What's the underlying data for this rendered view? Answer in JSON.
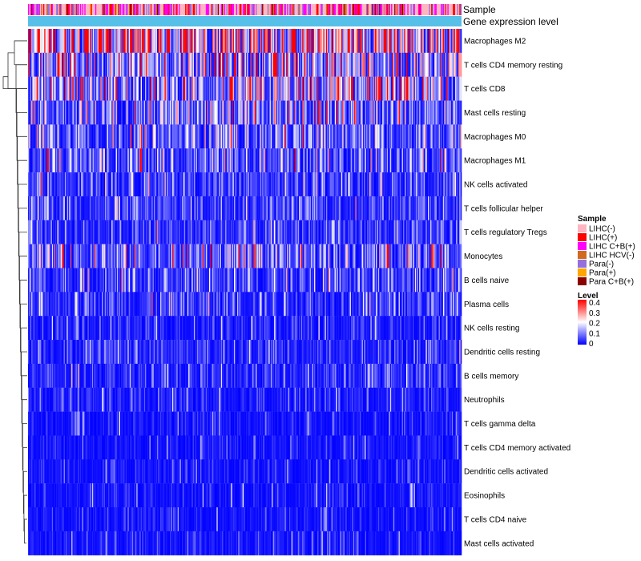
{
  "chart_data": {
    "type": "heatmap",
    "title": "",
    "annotations": [
      {
        "name": "Sample"
      },
      {
        "name": "Gene expression level"
      }
    ],
    "rows": [
      {
        "label": "Macrophages M2",
        "mean_level": 0.33
      },
      {
        "label": "T cells CD4 memory resting",
        "mean_level": 0.17
      },
      {
        "label": "T cells CD8",
        "mean_level": 0.15
      },
      {
        "label": "Mast cells resting",
        "mean_level": 0.11
      },
      {
        "label": "Macrophages M0",
        "mean_level": 0.09
      },
      {
        "label": "Macrophages M1",
        "mean_level": 0.08
      },
      {
        "label": "NK cells activated",
        "mean_level": 0.06
      },
      {
        "label": "T cells follicular helper",
        "mean_level": 0.06
      },
      {
        "label": "T cells regulatory  Tregs",
        "mean_level": 0.05
      },
      {
        "label": "Monocytes",
        "mean_level": 0.1
      },
      {
        "label": "B cells naive",
        "mean_level": 0.06
      },
      {
        "label": "Plasma cells",
        "mean_level": 0.06
      },
      {
        "label": "NK cells resting",
        "mean_level": 0.03
      },
      {
        "label": "Dendritic cells resting",
        "mean_level": 0.04
      },
      {
        "label": "B cells memory",
        "mean_level": 0.04
      },
      {
        "label": "Neutrophils",
        "mean_level": 0.03
      },
      {
        "label": "T cells gamma delta",
        "mean_level": 0.02
      },
      {
        "label": "T cells CD4 memory activated",
        "mean_level": 0.02
      },
      {
        "label": "Dendritic cells activated",
        "mean_level": 0.02
      },
      {
        "label": "Eosinophils",
        "mean_level": 0.02
      },
      {
        "label": "T cells CD4 naive",
        "mean_level": 0.02
      },
      {
        "label": "Mast cells activated",
        "mean_level": 0.02
      }
    ],
    "sample_legend": {
      "title": "Sample",
      "items": [
        {
          "label": "LIHC(-)",
          "color": "#ffb6c1"
        },
        {
          "label": "LIHC(+)",
          "color": "#ff0000"
        },
        {
          "label": "LIHC C+B(+)",
          "color": "#ff00ff"
        },
        {
          "label": "LIHC HCV(-)",
          "color": "#d2691e"
        },
        {
          "label": "Para(-)",
          "color": "#9370db"
        },
        {
          "label": "Para(+)",
          "color": "#ffa500"
        },
        {
          "label": "Para C+B(+)",
          "color": "#8b0000"
        }
      ]
    },
    "sample_weights": [
      0.42,
      0.16,
      0.2,
      0.02,
      0.14,
      0.03,
      0.03
    ],
    "expression_level_color": "#56c0e8",
    "level_legend": {
      "title": "Level",
      "ticks": [
        "0.4",
        "0.3",
        "0.2",
        "0.1",
        "0"
      ],
      "range": [
        0,
        0.4
      ],
      "colors": {
        "low": "#0000ff",
        "mid": "#ffffff",
        "high": "#ff0000"
      }
    },
    "n_samples": 400
  }
}
